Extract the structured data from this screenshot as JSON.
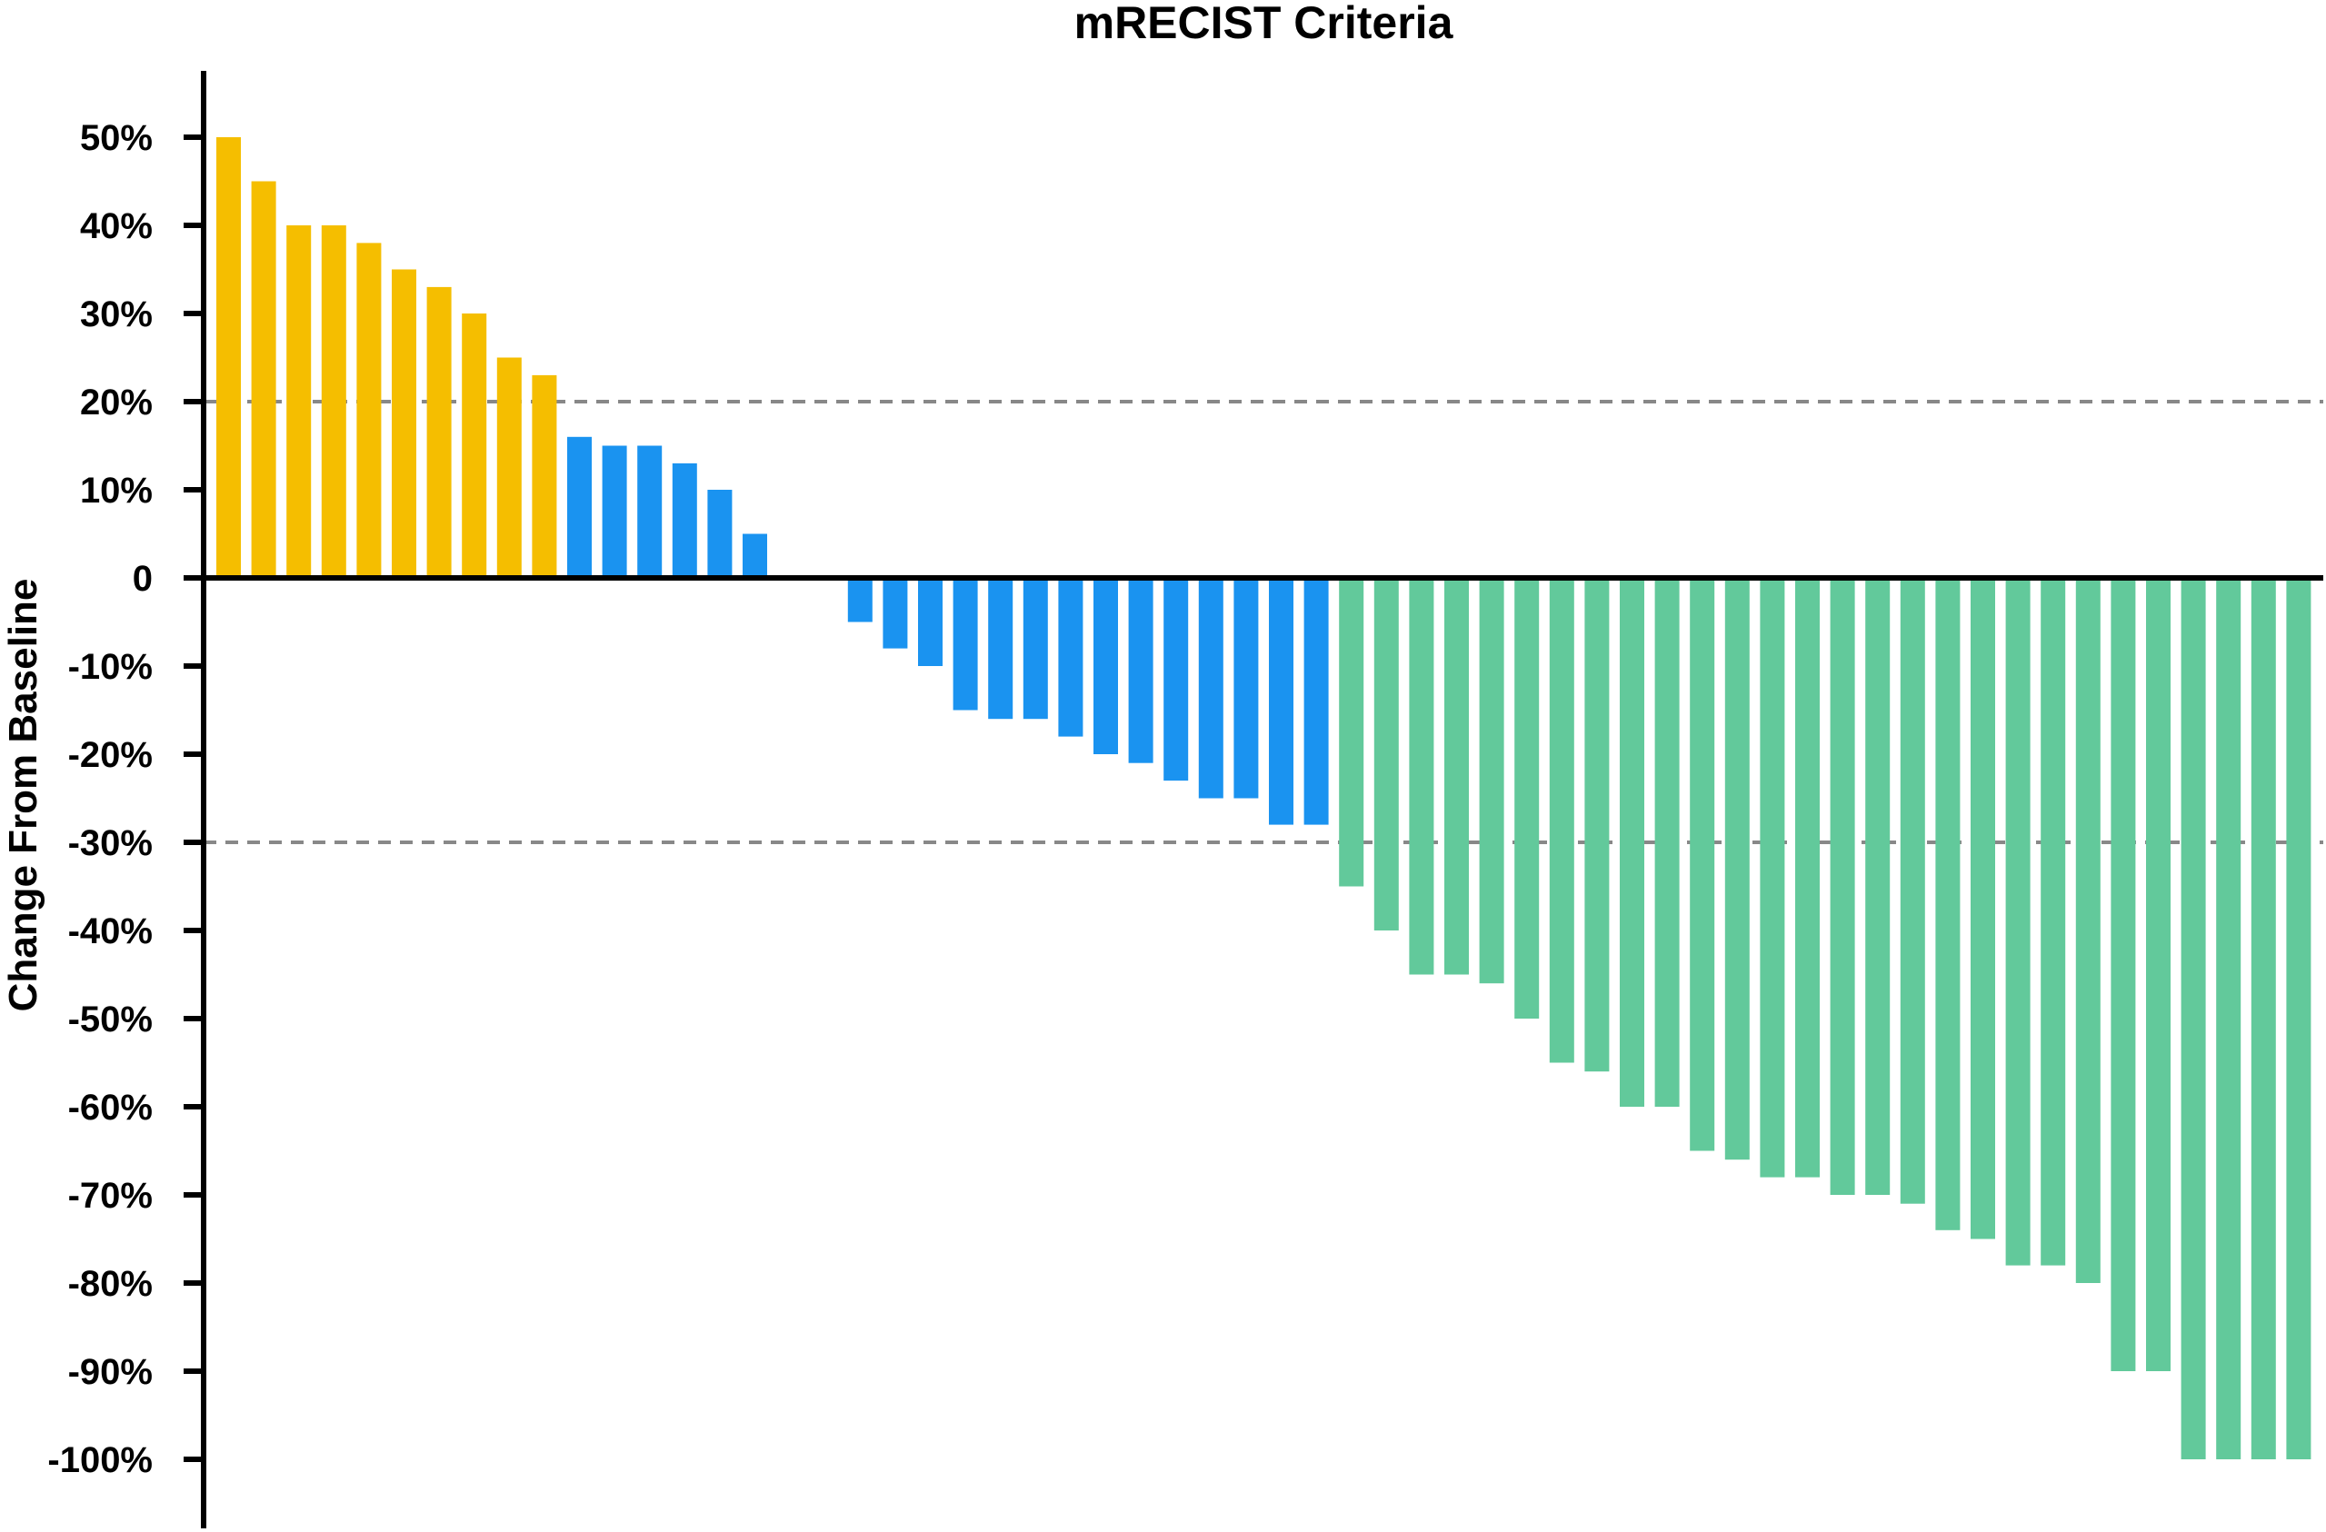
{
  "chart_data": {
    "type": "bar",
    "title": "mRECIST Criteria",
    "xlabel": "",
    "ylabel": "Change From Baseline",
    "ylim": [
      -100,
      55
    ],
    "yticks": [
      50,
      40,
      30,
      20,
      10,
      0,
      -10,
      -20,
      -30,
      -40,
      -50,
      -60,
      -70,
      -80,
      -90,
      -100
    ],
    "ytick_labels": [
      "50%",
      "40%",
      "30%",
      "20%",
      "10%",
      "0",
      "-10%",
      "-20%",
      "-30%",
      "-40%",
      "-50%",
      "-60%",
      "-70%",
      "-80%",
      "-90%",
      "-100%"
    ],
    "reference_lines": [
      20,
      -30
    ],
    "grid": false,
    "colors": {
      "yellow": "#F5BE00",
      "blue": "#1A93F0",
      "green": "#62C99B",
      "reference_line": "#888888",
      "axis": "#000000"
    },
    "values": [
      50,
      45,
      40,
      40,
      38,
      35,
      33,
      30,
      25,
      23,
      16,
      15,
      15,
      13,
      10,
      5,
      0,
      0,
      -5,
      -8,
      -10,
      -15,
      -16,
      -16,
      -18,
      -20,
      -21,
      -23,
      -25,
      -25,
      -28,
      -28,
      -35,
      -40,
      -45,
      -45,
      -46,
      -50,
      -55,
      -56,
      -60,
      -60,
      -65,
      -66,
      -68,
      -68,
      -70,
      -70,
      -71,
      -74,
      -75,
      -78,
      -78,
      -80,
      -90,
      -90,
      -100,
      -100,
      -100,
      -100
    ],
    "bar_colors": [
      "yellow",
      "yellow",
      "yellow",
      "yellow",
      "yellow",
      "yellow",
      "yellow",
      "yellow",
      "yellow",
      "yellow",
      "blue",
      "blue",
      "blue",
      "blue",
      "blue",
      "blue",
      "blue",
      "blue",
      "blue",
      "blue",
      "blue",
      "blue",
      "blue",
      "blue",
      "blue",
      "blue",
      "blue",
      "blue",
      "blue",
      "blue",
      "blue",
      "blue",
      "green",
      "green",
      "green",
      "green",
      "green",
      "green",
      "green",
      "green",
      "green",
      "green",
      "green",
      "green",
      "green",
      "green",
      "green",
      "green",
      "green",
      "green",
      "green",
      "green",
      "green",
      "green",
      "green",
      "green",
      "green",
      "green",
      "green",
      "green"
    ]
  }
}
